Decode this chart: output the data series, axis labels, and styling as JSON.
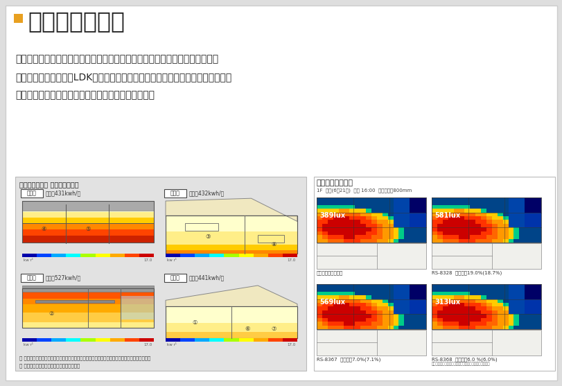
{
  "title": "日射量と明るさ",
  "title_square_color": "#E8A020",
  "background_color": "#dedede",
  "content_background": "#ffffff",
  "body_text_lines": [
    "日射量を計算し、熱取得が適切に得られるか、また、各部屋が適した明るさに",
    "なっているかを検証。LDKの空間が団らん・娯楽・遊びなどの推奨照度に適して",
    "いるかを確認し、より適切な状態になるように改善。"
  ],
  "left_panel_title": "各壁の日射取得 年間積算日射量",
  "left_panel_bg": "#e0e0e0",
  "sections": [
    {
      "label": "南西面",
      "value": "年間：431kwh/㎡"
    },
    {
      "label": "南東面",
      "value": "年間：432kwh/㎡"
    },
    {
      "label": "東北面",
      "value": "年間：527kwh/㎡"
    },
    {
      "label": "北西面",
      "value": "年間：441kwh/㎡"
    }
  ],
  "right_panel_title": "スクリーンの比較",
  "right_panel_subtitle": "1F  夏至(6月21日)  晴れ 16:00  机上面照度800mm",
  "screen_labels": [
    "内部スクリーン無し",
    "RS-8328  光透過率19.0%(18.7%)",
    "RS-8367  光透過率7.0%(7.1%)",
    "RS-8368  光透過率6.0 %(6.0%)"
  ],
  "screen_sublabel": "シミュレーション内モデルの光透過率（建築の光透過率）",
  "bullet_notes": [
    "各方位の日当たりの確認。隣棟等の影響を受けているが、各面の年間日射量の差は大きくない。",
    "この後窓ごとに詳細に熱収支を確認する。"
  ],
  "lux_values": [
    "389lux",
    "581lux",
    "569lux",
    "313lux"
  ]
}
